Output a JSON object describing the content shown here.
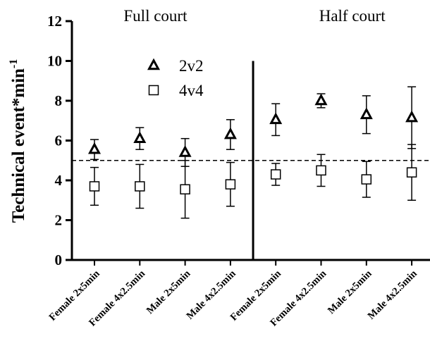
{
  "chart_data": {
    "type": "scatter",
    "title": "",
    "xlabel": "",
    "ylabel": "Technical event*min",
    "ylabel_superscript": "-1",
    "ylim": [
      0,
      12
    ],
    "yticks": [
      0,
      2,
      4,
      6,
      8,
      10,
      12
    ],
    "categories": [
      "Female 2x5min",
      "Female 4x2.5min",
      "Male  2x5min",
      "Male 4x2.5min",
      "Female  2x5min",
      "Female 4x2.5min",
      "Male  2x5min",
      "Male 4x2.5min"
    ],
    "sections": [
      {
        "label": "Full court",
        "categories_from": 0,
        "categories_to": 3
      },
      {
        "label": "Half court",
        "categories_from": 4,
        "categories_to": 7
      }
    ],
    "reference_line": {
      "y": 5.0,
      "style": "dashed"
    },
    "series": [
      {
        "name": "2v2",
        "marker": "triangle-open",
        "values": [
          5.55,
          6.1,
          5.4,
          6.3,
          7.05,
          8.0,
          7.3,
          7.15
        ],
        "error": [
          0.5,
          0.55,
          0.7,
          0.75,
          0.8,
          0.35,
          0.95,
          1.55
        ]
      },
      {
        "name": "4v4",
        "marker": "square-open",
        "values": [
          3.7,
          3.7,
          3.55,
          3.8,
          4.3,
          4.5,
          4.05,
          4.4
        ],
        "error": [
          0.95,
          1.1,
          1.45,
          1.1,
          0.55,
          0.8,
          0.9,
          1.4
        ]
      }
    ],
    "legend_position": "top-left-inside",
    "grid": false
  }
}
